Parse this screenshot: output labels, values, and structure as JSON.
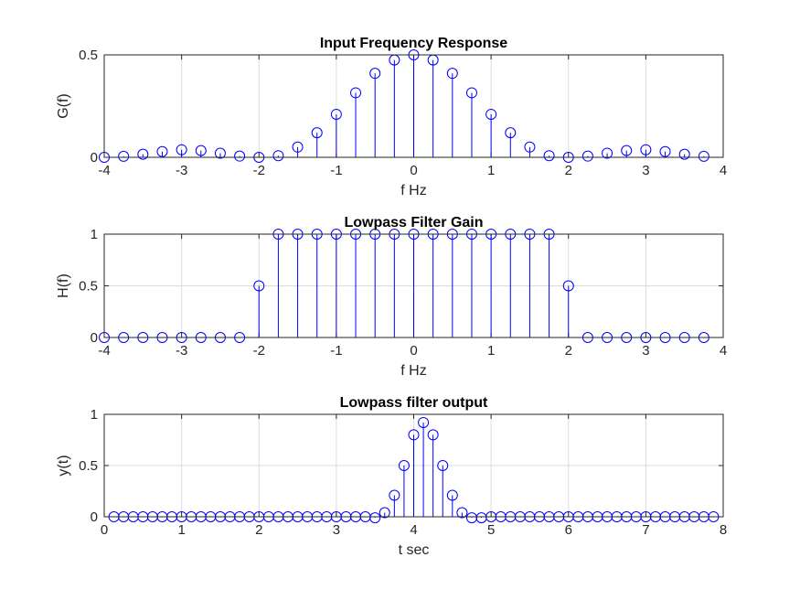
{
  "figure": {
    "stem_color": "#0000ff",
    "background": "#ffffff"
  },
  "chart_data": [
    {
      "type": "stem",
      "title": "Input Frequency Response",
      "xlabel": "f Hz",
      "ylabel": "G(f)",
      "xlim": [
        -4,
        4
      ],
      "ylim": [
        0,
        0.5
      ],
      "xticks": [
        -4,
        -3,
        -2,
        -1,
        0,
        1,
        2,
        3,
        4
      ],
      "yticks": [
        0,
        0.5
      ],
      "xtick_labels": [
        "-4",
        "-3",
        "-2",
        "-1",
        "0",
        "1",
        "2",
        "3",
        "4"
      ],
      "ytick_labels": [
        "0",
        "0.5"
      ],
      "grid": true,
      "x": [
        -4,
        -3.75,
        -3.5,
        -3.25,
        -3,
        -2.75,
        -2.5,
        -2.25,
        -2,
        -1.75,
        -1.5,
        -1.25,
        -1,
        -0.75,
        -0.5,
        -0.25,
        0,
        0.25,
        0.5,
        0.75,
        1,
        1.25,
        1.5,
        1.75,
        2,
        2.25,
        2.5,
        2.75,
        3,
        3.25,
        3.5,
        3.75
      ],
      "y": [
        0,
        0.005,
        0.015,
        0.028,
        0.037,
        0.033,
        0.02,
        0.006,
        0,
        0.008,
        0.05,
        0.12,
        0.21,
        0.315,
        0.41,
        0.475,
        0.5,
        0.475,
        0.41,
        0.315,
        0.21,
        0.12,
        0.05,
        0.008,
        0,
        0.006,
        0.02,
        0.033,
        0.037,
        0.028,
        0.015,
        0.005
      ]
    },
    {
      "type": "stem",
      "title": "Lowpass Filter Gain",
      "xlabel": "f Hz",
      "ylabel": "H(f)",
      "xlim": [
        -4,
        4
      ],
      "ylim": [
        0,
        1
      ],
      "xticks": [
        -4,
        -3,
        -2,
        -1,
        0,
        1,
        2,
        3,
        4
      ],
      "yticks": [
        0,
        0.5,
        1
      ],
      "xtick_labels": [
        "-4",
        "-3",
        "-2",
        "-1",
        "0",
        "1",
        "2",
        "3",
        "4"
      ],
      "ytick_labels": [
        "0",
        "0.5",
        "1"
      ],
      "grid": true,
      "x": [
        -4,
        -3.75,
        -3.5,
        -3.25,
        -3,
        -2.75,
        -2.5,
        -2.25,
        -2,
        -1.75,
        -1.5,
        -1.25,
        -1,
        -0.75,
        -0.5,
        -0.25,
        0,
        0.25,
        0.5,
        0.75,
        1,
        1.25,
        1.5,
        1.75,
        2,
        2.25,
        2.5,
        2.75,
        3,
        3.25,
        3.5,
        3.75
      ],
      "y": [
        0,
        0,
        0,
        0,
        0,
        0,
        0,
        0,
        0.5,
        1,
        1,
        1,
        1,
        1,
        1,
        1,
        1,
        1,
        1,
        1,
        1,
        1,
        1,
        1,
        0.5,
        0,
        0,
        0,
        0,
        0,
        0,
        0
      ]
    },
    {
      "type": "stem",
      "title": "Lowpass filter output",
      "xlabel": "t sec",
      "ylabel": "y(t)",
      "xlim": [
        0,
        8
      ],
      "ylim": [
        0,
        1
      ],
      "xticks": [
        0,
        1,
        2,
        3,
        4,
        5,
        6,
        7,
        8
      ],
      "yticks": [
        0,
        0.5,
        1
      ],
      "xtick_labels": [
        "0",
        "1",
        "2",
        "3",
        "4",
        "5",
        "6",
        "7",
        "8"
      ],
      "ytick_labels": [
        "0",
        "0.5",
        "1"
      ],
      "grid": true,
      "x": [
        0.125,
        0.25,
        0.375,
        0.5,
        0.625,
        0.75,
        0.875,
        1,
        1.125,
        1.25,
        1.375,
        1.5,
        1.625,
        1.75,
        1.875,
        2,
        2.125,
        2.25,
        2.375,
        2.5,
        2.625,
        2.75,
        2.875,
        3,
        3.125,
        3.25,
        3.375,
        3.5,
        3.625,
        3.75,
        3.875,
        4,
        4.125,
        4.25,
        4.375,
        4.5,
        4.625,
        4.75,
        4.875,
        5,
        5.125,
        5.25,
        5.375,
        5.5,
        5.625,
        5.75,
        5.875,
        6,
        6.125,
        6.25,
        6.375,
        6.5,
        6.625,
        6.75,
        6.875,
        7,
        7.125,
        7.25,
        7.375,
        7.5,
        7.625,
        7.75,
        7.875
      ],
      "y": [
        0,
        0,
        0,
        0,
        0,
        0,
        0,
        0,
        0,
        0,
        0,
        0,
        0,
        0,
        0,
        0,
        0,
        0,
        0,
        0,
        0,
        0,
        0,
        0,
        0,
        0,
        0,
        -0.01,
        0.04,
        0.21,
        0.5,
        0.8,
        0.92,
        0.8,
        0.5,
        0.21,
        0.04,
        -0.01,
        -0.01,
        0,
        0,
        0,
        0,
        0,
        0,
        0,
        0,
        0,
        0,
        0,
        0,
        0,
        0,
        0,
        0,
        0,
        0,
        0,
        0,
        0,
        0,
        0,
        0
      ]
    }
  ]
}
